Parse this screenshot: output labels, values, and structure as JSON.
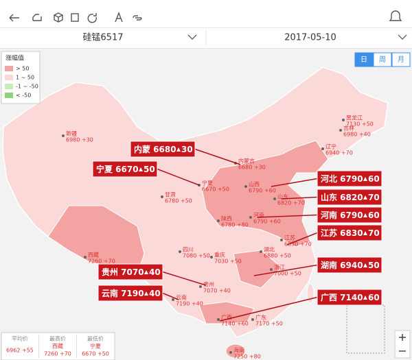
{
  "header": {
    "product": "硅锰6517",
    "date": "2017-05-10"
  },
  "tabs": [
    "日",
    "周",
    "月"
  ],
  "legend": {
    "title": "涨幅值",
    "items": [
      {
        "label": "> 50",
        "color": "#f4a3a3"
      },
      {
        "label": "1 ~ 50",
        "color": "#fcd9d9"
      },
      {
        "label": "-1 ~ -50",
        "color": "#c8ecb8"
      },
      {
        "label": "< -50",
        "color": "#8fd07a"
      }
    ]
  },
  "provinces": [
    {
      "name": "新疆",
      "value": "6980 +30"
    },
    {
      "name": "黑龙江",
      "value": "7130 +50"
    },
    {
      "name": "吉林",
      "value": "6980 +40"
    },
    {
      "name": "辽宁",
      "value": "6940 +70"
    },
    {
      "name": "内蒙古",
      "value": "6680 +30"
    },
    {
      "name": "宁夏",
      "value": "6670 +50"
    },
    {
      "name": "甘肃",
      "value": "6780 +50"
    },
    {
      "name": "山西",
      "value": "6790 +60"
    },
    {
      "name": "山东",
      "value": "6820 +70"
    },
    {
      "name": "陕西",
      "value": "6780 +80"
    },
    {
      "name": "河南",
      "value": "6790 +60"
    },
    {
      "name": "江苏",
      "value": "6830 +70"
    },
    {
      "name": "四川",
      "value": "7080 +50"
    },
    {
      "name": "重庆",
      "value": "7030 +50"
    },
    {
      "name": "湖北",
      "value": "6880 +50"
    },
    {
      "name": "浙江",
      "value": "7000 +50"
    },
    {
      "name": "西藏",
      "value": "7260 +70"
    },
    {
      "name": "贵州",
      "value": "7070 +40"
    },
    {
      "name": "云南",
      "value": "7190 +40"
    },
    {
      "name": "广西",
      "value": "7140 +60"
    },
    {
      "name": "广东",
      "value": "7170 +50"
    },
    {
      "name": "海南",
      "value": "7250 +80"
    }
  ],
  "callouts": [
    {
      "label": "内蒙 6680",
      "change": "30"
    },
    {
      "label": "宁夏 6670",
      "change": "50"
    },
    {
      "label": "河北 6790",
      "change": "60"
    },
    {
      "label": "山东 6820",
      "change": "70"
    },
    {
      "label": "河南 6790",
      "change": "60"
    },
    {
      "label": "江苏 6830",
      "change": "70"
    },
    {
      "label": "湖南 6940",
      "change": "50"
    },
    {
      "label": "广西 7140",
      "change": "60"
    },
    {
      "label": "贵州 7070",
      "change": "40"
    },
    {
      "label": "云南 7190",
      "change": "40"
    }
  ],
  "stats": [
    {
      "label": "平均价",
      "lines": [
        "6962 +55"
      ]
    },
    {
      "label": "最高价",
      "lines": [
        "西藏",
        "7260 +70"
      ]
    },
    {
      "label": "最低价",
      "lines": [
        "宁夏",
        "6670 +50"
      ]
    }
  ]
}
